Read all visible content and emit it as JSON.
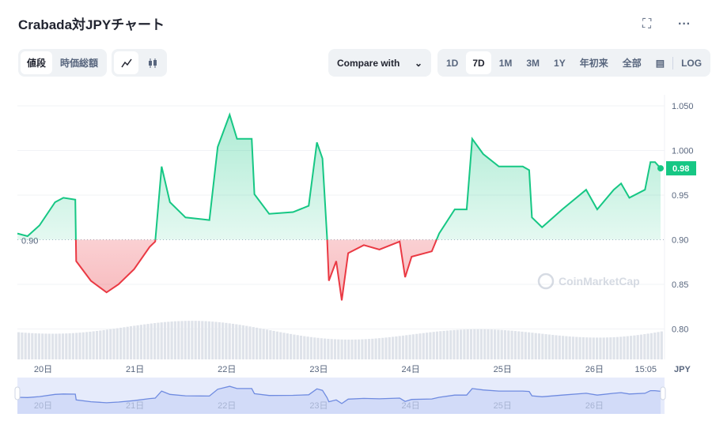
{
  "title": "Crabada対JPYチャート",
  "icons": {
    "fullscreen": "fullscreen-icon",
    "more": "more-icon"
  },
  "type_tabs": [
    {
      "label": "値段",
      "active": true
    },
    {
      "label": "時価総額",
      "active": false
    }
  ],
  "chart_style": [
    {
      "icon": "line-chart-icon",
      "active": true
    },
    {
      "icon": "candlestick-icon",
      "active": false
    }
  ],
  "compare": {
    "label": "Compare with"
  },
  "ranges": [
    {
      "label": "1D"
    },
    {
      "label": "7D",
      "active": true
    },
    {
      "label": "1M"
    },
    {
      "label": "3M"
    },
    {
      "label": "1Y"
    },
    {
      "label": "年初来"
    },
    {
      "label": "全部"
    }
  ],
  "log_label": "LOG",
  "watermark": "CoinMarketCap",
  "colors": {
    "up": "#16c784",
    "down": "#ea3943",
    "nav": "#6f8be0"
  },
  "chart_data": {
    "type": "line",
    "baseline": 0.9,
    "baseline_label": "0.90",
    "current_label": "0.98",
    "ylim": [
      0.765,
      1.065
    ],
    "yticks": [
      "1.050",
      "1.000",
      "0.95",
      "0.90",
      "0.85",
      "0.80"
    ],
    "ytick_values": [
      1.05,
      1.0,
      0.95,
      0.9,
      0.85,
      0.8
    ],
    "y_unit": "JPY",
    "xticks": [
      "20日",
      "21日",
      "22日",
      "23日",
      "24日",
      "25日",
      "26日"
    ],
    "xtick_values": [
      20,
      21,
      22,
      23,
      24,
      25,
      26
    ],
    "last_time_label": "15:05",
    "xlim": [
      19.72,
      26.72
    ],
    "x": [
      19.72,
      19.83,
      19.96,
      20.13,
      20.22,
      20.35,
      20.36,
      20.52,
      20.69,
      20.82,
      20.99,
      21.16,
      21.22,
      21.29,
      21.38,
      21.55,
      21.81,
      21.9,
      22.03,
      22.11,
      22.27,
      22.3,
      22.46,
      22.72,
      22.89,
      22.98,
      23.04,
      23.09,
      23.11,
      23.19,
      23.25,
      23.32,
      23.49,
      23.66,
      23.88,
      23.94,
      24.01,
      24.23,
      24.31,
      24.48,
      24.61,
      24.67,
      24.79,
      24.96,
      25.22,
      25.29,
      25.32,
      25.43,
      25.65,
      25.91,
      26.03,
      26.21,
      26.29,
      26.38,
      26.55,
      26.61,
      26.66,
      26.72
    ],
    "y": [
      0.907,
      0.904,
      0.916,
      0.942,
      0.947,
      0.945,
      0.876,
      0.854,
      0.841,
      0.85,
      0.867,
      0.892,
      0.898,
      0.982,
      0.942,
      0.925,
      0.922,
      1.004,
      1.04,
      1.013,
      1.013,
      0.951,
      0.929,
      0.931,
      0.938,
      1.009,
      0.991,
      0.903,
      0.854,
      0.876,
      0.832,
      0.885,
      0.894,
      0.889,
      0.898,
      0.858,
      0.881,
      0.887,
      0.907,
      0.934,
      0.934,
      1.013,
      0.996,
      0.982,
      0.982,
      0.978,
      0.925,
      0.914,
      0.934,
      0.956,
      0.934,
      0.956,
      0.963,
      0.947,
      0.956,
      0.987,
      0.987,
      0.98
    ]
  }
}
